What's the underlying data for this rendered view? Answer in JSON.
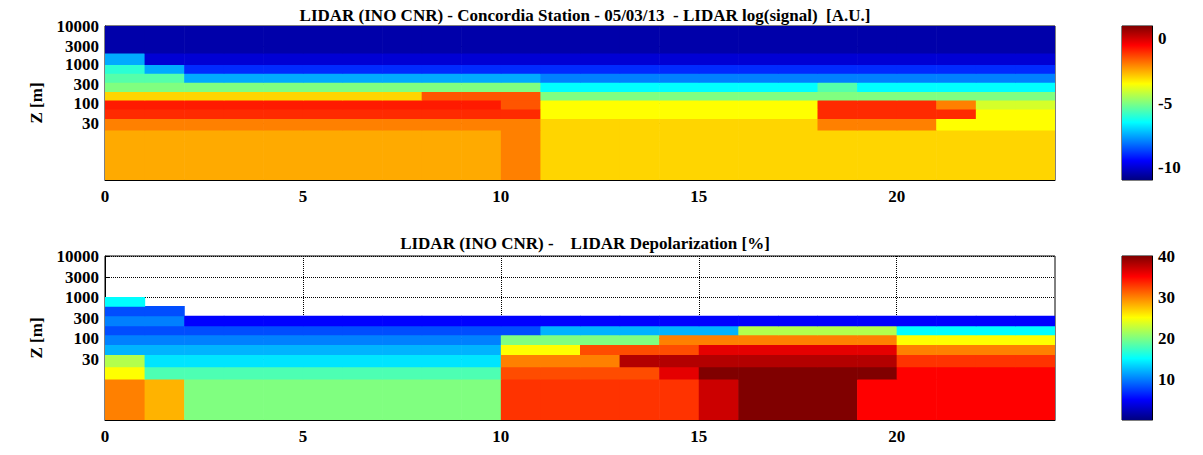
{
  "chart_data": [
    {
      "type": "heatmap",
      "title": "LIDAR (INO CNR) - Concordia Station - 05/03/13  - LIDAR log(signal)  [A.U.]",
      "y_label": "Z [m]",
      "xlim": [
        0,
        24
      ],
      "xticks": [
        0,
        5,
        10,
        15,
        20
      ],
      "ylim": [
        1,
        10000
      ],
      "yticks": [
        30,
        100,
        300,
        1000,
        3000,
        10000
      ],
      "log": "y",
      "grid": true,
      "x_edges": [
        0,
        1,
        2,
        3,
        4,
        5,
        6,
        7,
        8,
        9,
        10,
        11,
        12,
        13,
        14,
        15,
        16,
        17,
        18,
        19,
        20,
        21,
        22,
        23,
        24
      ],
      "y_edges": [
        1,
        10,
        20,
        40,
        70,
        120,
        200,
        350,
        600,
        1000,
        2000,
        10000
      ],
      "cells": [
        [
          -2.5,
          -2.5,
          -2.5,
          -2.5,
          -2.5,
          -2.5,
          -2.5,
          -2.5,
          -2.5,
          -2.5,
          -2,
          -3,
          -3,
          -3,
          -3,
          -3,
          -3,
          -3,
          -3,
          -3,
          -3,
          -3,
          -3,
          -3
        ],
        [
          -2.5,
          -2.5,
          -2.5,
          -2.5,
          -2.5,
          -2.5,
          -2.5,
          -2.5,
          -2.5,
          -2.5,
          -2,
          -3,
          -3,
          -3,
          -3,
          -3,
          -3,
          -3,
          -3,
          -3,
          -3,
          -3,
          -3,
          -3
        ],
        [
          -2,
          -2,
          -2,
          -2,
          -2,
          -2,
          -2,
          -2,
          -2,
          -2,
          -2,
          -3,
          -3,
          -3,
          -3,
          -3,
          -3,
          -3,
          -2,
          -2,
          -2,
          -3.5,
          -3.5,
          -3.5
        ],
        [
          -1,
          -1,
          -1,
          -1,
          -1,
          -1,
          -1,
          -1,
          -1,
          -1,
          -1,
          -3.5,
          -3.5,
          -3.5,
          -3.5,
          -3.5,
          -3.5,
          -3.5,
          -1,
          -1,
          -1,
          -1,
          -3.5,
          -3.5
        ],
        [
          -0.8,
          -0.8,
          -0.8,
          -0.8,
          -0.8,
          -0.8,
          -0.8,
          -0.8,
          -0.8,
          -0.8,
          -1.5,
          -3.5,
          -3.5,
          -3.5,
          -3.5,
          -3.5,
          -3.5,
          -3.5,
          -1,
          -1,
          -1,
          -2,
          -4,
          -4
        ],
        [
          -3,
          -3,
          -3,
          -3,
          -3,
          -3,
          -3,
          -3,
          -1.5,
          -1.5,
          -1.5,
          -5,
          -5,
          -5,
          -5,
          -5,
          -5,
          -5,
          -5,
          -5,
          -5,
          -5,
          -5,
          -5
        ],
        [
          -5,
          -5,
          -5,
          -5,
          -5,
          -5,
          -5,
          -5,
          -5,
          -5,
          -5,
          -6.5,
          -6.5,
          -6.5,
          -6.5,
          -6.5,
          -6.5,
          -6.5,
          -5.5,
          -6.5,
          -6.5,
          -6.5,
          -6.5,
          -6.5
        ],
        [
          -5.5,
          -5.5,
          -7.5,
          -7.5,
          -7.5,
          -7.5,
          -7.5,
          -7.5,
          -7.5,
          -7.5,
          -7.5,
          -8,
          -8,
          -8,
          -8,
          -8,
          -8,
          -8,
          -8,
          -8,
          -8,
          -8,
          -8,
          -8
        ],
        [
          -6,
          -7.5,
          -9,
          -9,
          -9,
          -9,
          -9,
          -9,
          -9,
          -9,
          -9,
          -9,
          -9,
          -9,
          -9,
          -9,
          -9,
          -9,
          -9,
          -9,
          -9,
          -9,
          -9,
          -9
        ],
        [
          -7.5,
          -10,
          -10,
          -10,
          -10,
          -10,
          -10,
          -10,
          -10,
          -10,
          -10,
          -10,
          -10,
          -10,
          -10,
          -10,
          -10,
          -10,
          -10,
          -10,
          -10,
          -10,
          -10,
          -10
        ],
        [
          -10.5,
          -10.5,
          -10.5,
          -10.5,
          -10.5,
          -10.5,
          -10.5,
          -10.5,
          -10.5,
          -10.5,
          -10.5,
          -10.5,
          -10.5,
          -10.5,
          -10.5,
          -10.5,
          -10.5,
          -10.5,
          -10.5,
          -10.5,
          -10.5,
          -10.5,
          -10.5,
          -10.5
        ]
      ],
      "colorbar": {
        "range": [
          -11,
          1
        ],
        "ticks": [
          -10,
          -5,
          0
        ]
      }
    },
    {
      "type": "heatmap",
      "title": "LIDAR (INO CNR) -    LIDAR Depolarization [%]",
      "y_label": "Z [m]",
      "xlim": [
        0,
        24
      ],
      "xticks": [
        0,
        5,
        10,
        15,
        20
      ],
      "ylim": [
        1,
        10000
      ],
      "yticks": [
        30,
        100,
        300,
        1000,
        3000,
        10000
      ],
      "log": "y",
      "grid": true,
      "x_edges": [
        0,
        1,
        2,
        3,
        4,
        5,
        6,
        7,
        8,
        9,
        10,
        11,
        12,
        13,
        14,
        15,
        16,
        17,
        18,
        19,
        20,
        21,
        22,
        23,
        24
      ],
      "y_edges": [
        1,
        10,
        20,
        40,
        70,
        120,
        200,
        350,
        600,
        1000,
        2000,
        10000
      ],
      "cells": [
        [
          30,
          28,
          20,
          20,
          20,
          20,
          20,
          20,
          20,
          20,
          33,
          33,
          33,
          33,
          33,
          37,
          40,
          40,
          40,
          35,
          35,
          35,
          35,
          35
        ],
        [
          25,
          18,
          18,
          18,
          18,
          18,
          18,
          18,
          18,
          18,
          32,
          32,
          32,
          32,
          36,
          40,
          40,
          40,
          40,
          40,
          35,
          35,
          35,
          35
        ],
        [
          22,
          14,
          14,
          14,
          14,
          14,
          14,
          14,
          14,
          14,
          30,
          30,
          30,
          38,
          38,
          38,
          38,
          38,
          38,
          38,
          33,
          33,
          33,
          33
        ],
        [
          12,
          12,
          12,
          12,
          12,
          12,
          12,
          12,
          12,
          12,
          25,
          25,
          32,
          32,
          32,
          36,
          36,
          36,
          36,
          36,
          30,
          30,
          30,
          30
        ],
        [
          10,
          10,
          10,
          10,
          10,
          10,
          10,
          10,
          10,
          10,
          20,
          20,
          20,
          20,
          30,
          30,
          30,
          30,
          30,
          30,
          25,
          25,
          25,
          25
        ],
        [
          8,
          8,
          8,
          8,
          8,
          8,
          8,
          8,
          8,
          8,
          8,
          12,
          12,
          12,
          12,
          12,
          22,
          22,
          22,
          22,
          15,
          15,
          15,
          15
        ],
        [
          10,
          10,
          5,
          5,
          5,
          5,
          5,
          5,
          5,
          5,
          5,
          5,
          5,
          5,
          5,
          5,
          5,
          5,
          5,
          5,
          5,
          5,
          5,
          5
        ],
        [
          8,
          8,
          null,
          null,
          null,
          null,
          null,
          null,
          null,
          null,
          null,
          null,
          null,
          null,
          null,
          null,
          null,
          null,
          null,
          null,
          null,
          null,
          null,
          null
        ],
        [
          15,
          null,
          null,
          null,
          null,
          null,
          null,
          null,
          null,
          null,
          null,
          null,
          null,
          null,
          null,
          null,
          null,
          null,
          null,
          null,
          null,
          null,
          null,
          null
        ],
        [
          null,
          null,
          null,
          null,
          null,
          null,
          null,
          null,
          null,
          null,
          null,
          null,
          null,
          null,
          null,
          null,
          null,
          null,
          null,
          null,
          null,
          null,
          null,
          null
        ],
        [
          null,
          null,
          null,
          null,
          null,
          null,
          null,
          null,
          null,
          null,
          null,
          null,
          null,
          null,
          null,
          null,
          null,
          null,
          null,
          null,
          null,
          null,
          null,
          null
        ]
      ],
      "colorbar": {
        "range": [
          0,
          40
        ],
        "ticks": [
          10,
          20,
          30,
          40
        ]
      }
    }
  ]
}
